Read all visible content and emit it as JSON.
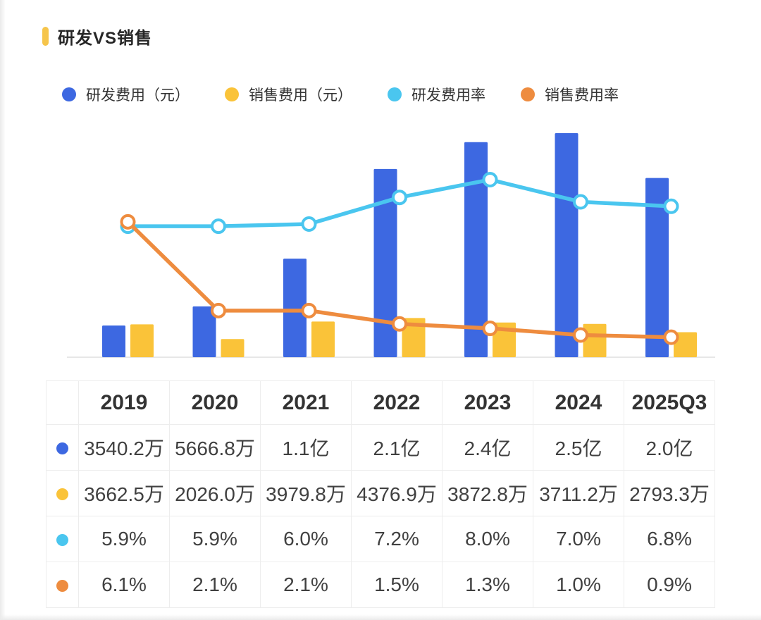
{
  "title": "研发VS销售",
  "colors": {
    "title_marker": "#F6C54B",
    "rd_expense": "#3D68E1",
    "sales_expense": "#FAC339",
    "rd_rate": "#4AC6EF",
    "sales_rate": "#EE8C3F",
    "axis_line": "#E7E7E7",
    "table_border": "#EDEDED",
    "text_dark": "#262626",
    "text_cell": "#404040"
  },
  "legend": [
    {
      "id": "rd_expense",
      "label": "研发费用（元）",
      "color_key": "rd_expense"
    },
    {
      "id": "sales_expense",
      "label": "销售费用（元）",
      "color_key": "sales_expense"
    },
    {
      "id": "rd_rate",
      "label": "研发费用率",
      "color_key": "rd_rate"
    },
    {
      "id": "sales_rate",
      "label": "销售费用率",
      "color_key": "sales_rate"
    }
  ],
  "chart_data": {
    "type": "combo-bar-line",
    "title": "研发VS销售",
    "categories": [
      "2019",
      "2020",
      "2021",
      "2022",
      "2023",
      "2024",
      "2025Q3"
    ],
    "grid": false,
    "legend_position": "top",
    "bar_axis_unit": "万元",
    "bar_axis_max_wan": 25000,
    "pct_axis_visible": false,
    "series": [
      {
        "id": "rd_expense",
        "name": "研发费用（元）",
        "type": "bar",
        "color_key": "rd_expense",
        "unit": "万元",
        "values": [
          3540.2,
          5666.8,
          11000,
          21000,
          24000,
          25000,
          20000
        ],
        "labels": [
          "3540.2万",
          "5666.8万",
          "1.1亿",
          "2.1亿",
          "2.4亿",
          "2.5亿",
          "2.0亿"
        ]
      },
      {
        "id": "sales_expense",
        "name": "销售费用（元）",
        "type": "bar",
        "color_key": "sales_expense",
        "unit": "万元",
        "values": [
          3662.5,
          2026.0,
          3979.8,
          4376.9,
          3872.8,
          3711.2,
          2793.3
        ],
        "labels": [
          "3662.5万",
          "2026.0万",
          "3979.8万",
          "4376.9万",
          "3872.8万",
          "3711.2万",
          "2793.3万"
        ]
      },
      {
        "id": "rd_rate",
        "name": "研发费用率",
        "type": "line",
        "color_key": "rd_rate",
        "unit": "%",
        "values": [
          5.9,
          5.9,
          6.0,
          7.2,
          8.0,
          7.0,
          6.8
        ],
        "labels": [
          "5.9%",
          "5.9%",
          "6.0%",
          "7.2%",
          "8.0%",
          "7.0%",
          "6.8%"
        ]
      },
      {
        "id": "sales_rate",
        "name": "销售费用率",
        "type": "line",
        "color_key": "sales_rate",
        "unit": "%",
        "values": [
          6.1,
          2.1,
          2.1,
          1.5,
          1.3,
          1.0,
          0.9
        ],
        "labels": [
          "6.1%",
          "2.1%",
          "2.1%",
          "1.5%",
          "1.3%",
          "1.0%",
          "0.9%"
        ]
      }
    ]
  }
}
